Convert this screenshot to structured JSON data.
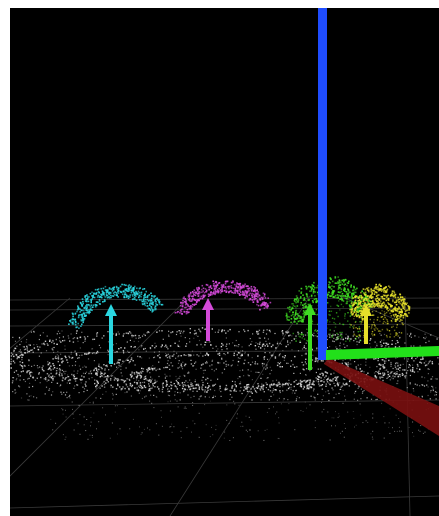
{
  "viewer": {
    "background": "#000000",
    "grid_color": "#3a3a3a",
    "cloud_color": "#d9d9d9"
  },
  "axes": {
    "x_color": "#7a0f0f",
    "y_color": "#22e01a",
    "z_color": "#1f4dff"
  },
  "clusters": [
    {
      "name": "cluster-1",
      "color": "#2ad6e0"
    },
    {
      "name": "cluster-2",
      "color": "#d34ad8"
    },
    {
      "name": "cluster-3",
      "color": "#3fdc22"
    },
    {
      "name": "cluster-4",
      "color": "#e6e02a"
    }
  ],
  "markers": [
    {
      "name": "cluster-1-normal-arrow",
      "color": "#2ad6e0"
    },
    {
      "name": "cluster-2-normal-arrow",
      "color": "#d34ad8"
    },
    {
      "name": "cluster-3-normal-arrow",
      "color": "#3fdc22"
    },
    {
      "name": "cluster-4-normal-arrow",
      "color": "#e6e02a"
    }
  ]
}
